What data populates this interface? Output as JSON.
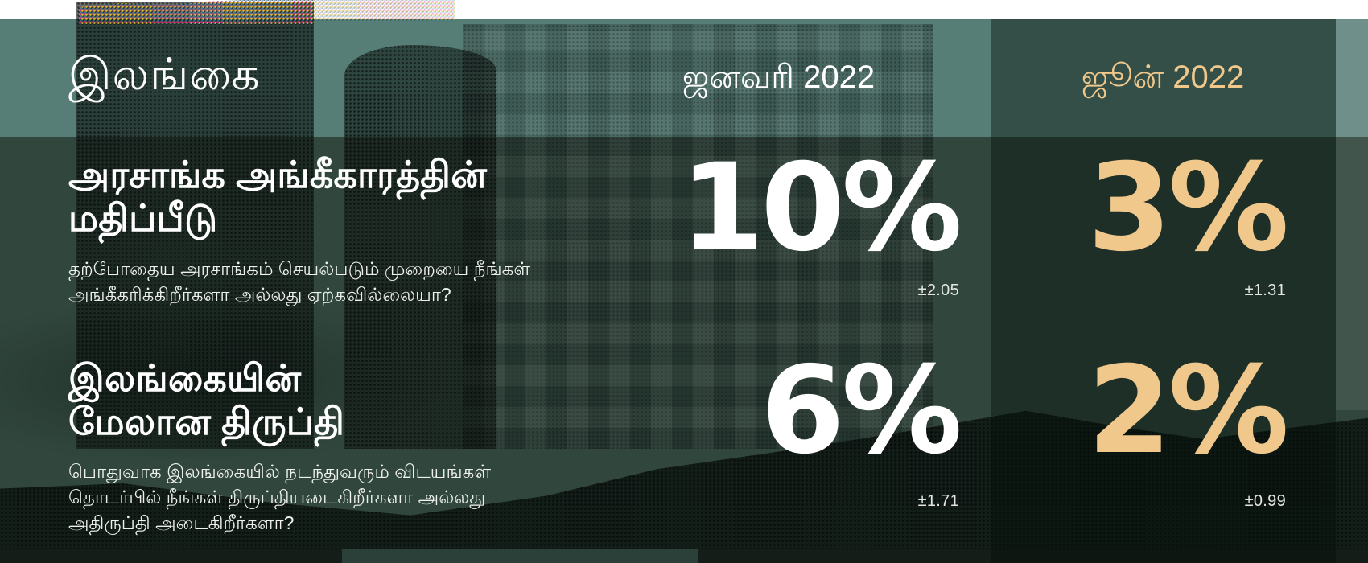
{
  "title": "இலங்கை",
  "columns": {
    "january": {
      "label": "ஜனவரி 2022"
    },
    "june": {
      "label": "ஜூன் 2022"
    }
  },
  "rows": [
    {
      "heading_lines": [
        "அரசாங்க அங்கீகாரத்தின்",
        "மதிப்பீடு"
      ],
      "question_lines": [
        "தற்போதைய அரசாங்கம் செயல்படும் முறையை நீங்கள்",
        "அங்கீகரிக்கிறீர்களா அல்லது ஏற்கவில்லையா?"
      ],
      "january": {
        "value": "10%",
        "margin_of_error": "±2.05"
      },
      "june": {
        "value": "3%",
        "margin_of_error": "±1.31"
      }
    },
    {
      "heading_lines": [
        "இலங்கையின்",
        "மேலான திருப்தி"
      ],
      "question_lines": [
        "பொதுவாக இலங்கையில் நடந்துவரும் விடயங்கள்",
        "தொடர்பில் நீங்கள் திருப்தியடைகிறீர்களா அல்லது",
        "அதிருப்தி அடைகிறீர்களா?"
      ],
      "january": {
        "value": "6%",
        "margin_of_error": "±1.71"
      },
      "june": {
        "value": "2%",
        "margin_of_error": "±0.99"
      }
    }
  ],
  "colors": {
    "header_teal": "#567e76",
    "body_green": "#31473d",
    "june_column_dark": "#24372f",
    "accent_gold": "#f0c88c",
    "text_white": "#ffffff"
  },
  "chart_data": {
    "type": "table",
    "title": "இலங்கை",
    "columns": [
      "ஜனவரி 2022",
      "ஜூன் 2022"
    ],
    "rows": [
      {
        "label": "அரசாங்க அங்கீகாரத்தின் மதிப்பீடு",
        "question": "தற்போதைய அரசாங்கம் செயல்படும் முறையை நீங்கள் அங்கீகரிக்கிறீர்களா அல்லது ஏற்கவில்லையா?",
        "values_pct": [
          10,
          3
        ],
        "margins_of_error": [
          2.05,
          1.31
        ]
      },
      {
        "label": "இலங்கையின் மேலான திருப்தி",
        "question": "பொதுவாக இலங்கையில் நடந்துவரும் விடயங்கள் தொடர்பில் நீங்கள் திருப்தியடைகிறீர்களா அல்லது அதிருப்தி அடைகிறீர்களா?",
        "values_pct": [
          6,
          2
        ],
        "margins_of_error": [
          1.71,
          0.99
        ]
      }
    ]
  }
}
